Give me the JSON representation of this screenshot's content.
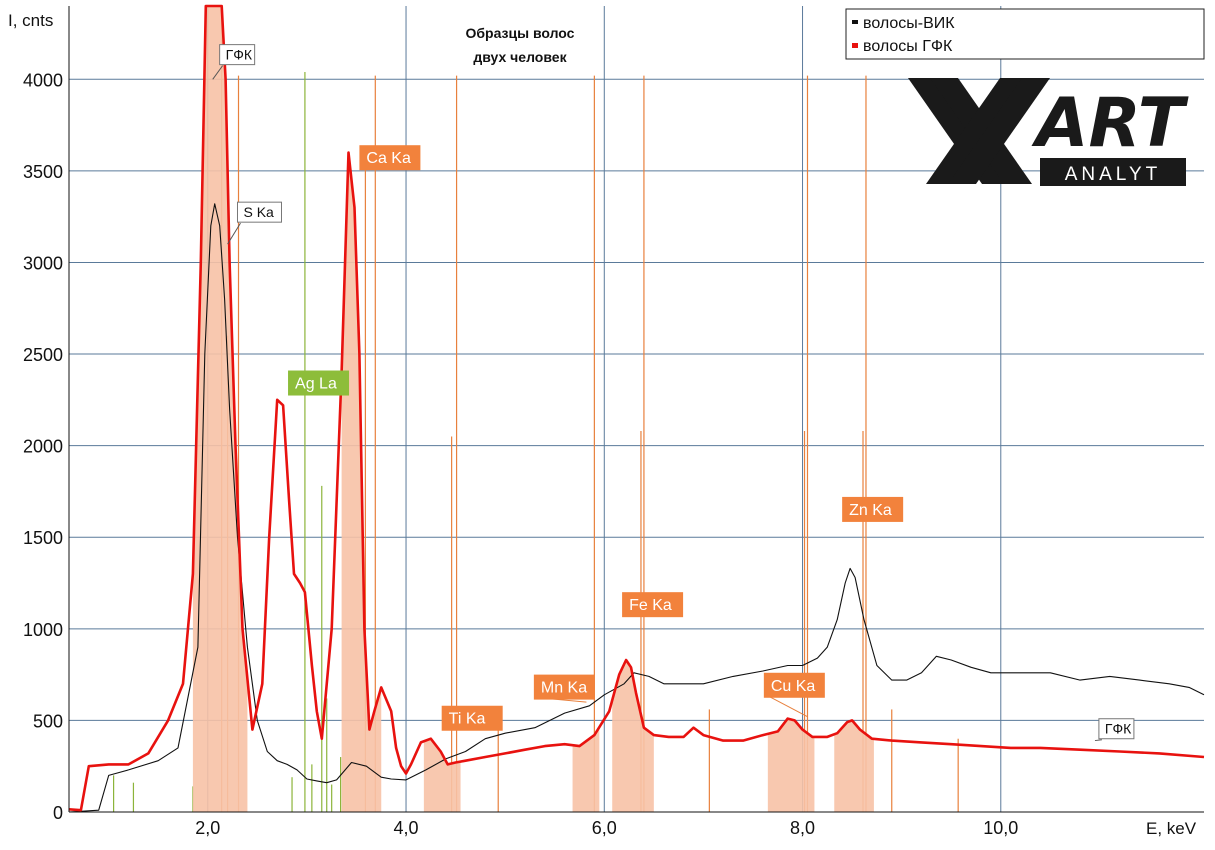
{
  "chart_data": {
    "type": "line",
    "title_lines": [
      "Образцы волос",
      "двух человек"
    ],
    "xlabel": "E, keV",
    "ylabel": "I, cnts",
    "xlim": [
      0.6,
      12.05
    ],
    "ylim": [
      0,
      4400
    ],
    "x_ticks": [
      2,
      4,
      6,
      8,
      10
    ],
    "x_tick_labels": [
      "2,0",
      "4,0",
      "6,0",
      "8,0",
      "10,0"
    ],
    "y_ticks": [
      0,
      500,
      1000,
      1500,
      2000,
      2500,
      3000,
      3500,
      4000
    ],
    "y_tick_labels": [
      "0",
      "500",
      "1000",
      "1500",
      "2000",
      "2500",
      "3000",
      "3500",
      "4000"
    ],
    "grid": true,
    "legend_position": "top-right",
    "colors": {
      "series_black": "#111111",
      "series_red": "#e8120f",
      "fill": "#f7c2a6",
      "marker_orange": "#e8803d",
      "marker_green": "#8cb43a",
      "label_orange": "#f2823c",
      "label_green": "#8dbd3a",
      "grid": "#5a7a9a"
    },
    "series": [
      {
        "name": "волосы-ВИК",
        "color": "#111111",
        "x": [
          0.6,
          0.9,
          1.0,
          1.2,
          1.5,
          1.7,
          1.9,
          1.97,
          2.03,
          2.07,
          2.12,
          2.17,
          2.22,
          2.3,
          2.4,
          2.5,
          2.6,
          2.7,
          2.8,
          2.9,
          3.0,
          3.1,
          3.2,
          3.3,
          3.45,
          3.6,
          3.75,
          3.85,
          4.0,
          4.2,
          4.4,
          4.6,
          4.8,
          5.0,
          5.3,
          5.6,
          5.85,
          6.0,
          6.2,
          6.3,
          6.45,
          6.6,
          6.8,
          7.0,
          7.3,
          7.6,
          7.85,
          8.0,
          8.15,
          8.25,
          8.35,
          8.43,
          8.48,
          8.53,
          8.62,
          8.75,
          8.9,
          9.05,
          9.2,
          9.35,
          9.5,
          9.7,
          9.9,
          10.1,
          10.3,
          10.5,
          10.8,
          11.1,
          11.4,
          11.7,
          11.9,
          12.05
        ],
        "values": [
          0,
          10,
          200,
          230,
          280,
          350,
          900,
          2500,
          3200,
          3320,
          3200,
          2800,
          2200,
          1500,
          900,
          500,
          330,
          280,
          260,
          230,
          180,
          170,
          160,
          175,
          270,
          250,
          190,
          180,
          175,
          230,
          290,
          330,
          400,
          430,
          460,
          540,
          580,
          640,
          700,
          760,
          740,
          700,
          700,
          700,
          740,
          770,
          800,
          800,
          840,
          900,
          1050,
          1250,
          1330,
          1280,
          1050,
          800,
          720,
          720,
          760,
          850,
          830,
          790,
          760,
          760,
          760,
          760,
          720,
          740,
          720,
          700,
          680,
          640
        ]
      },
      {
        "name": "волосы ГФК",
        "color": "#e8120f",
        "x": [
          0.6,
          0.72,
          0.8,
          1.0,
          1.2,
          1.4,
          1.6,
          1.75,
          1.85,
          1.93,
          1.98,
          2.02,
          2.06,
          2.1,
          2.14,
          2.18,
          2.22,
          2.28,
          2.35,
          2.45,
          2.55,
          2.62,
          2.7,
          2.76,
          2.82,
          2.87,
          2.93,
          2.98,
          3.05,
          3.1,
          3.15,
          3.25,
          3.35,
          3.42,
          3.48,
          3.53,
          3.58,
          3.63,
          3.68,
          3.75,
          3.85,
          3.9,
          3.95,
          4.0,
          4.05,
          4.15,
          4.25,
          4.35,
          4.42,
          4.5,
          4.6,
          4.8,
          5.0,
          5.2,
          5.4,
          5.6,
          5.75,
          5.9,
          6.05,
          6.15,
          6.22,
          6.27,
          6.32,
          6.4,
          6.5,
          6.65,
          6.8,
          6.9,
          7.0,
          7.2,
          7.4,
          7.6,
          7.75,
          7.85,
          7.92,
          8.0,
          8.1,
          8.25,
          8.35,
          8.45,
          8.5,
          8.58,
          8.7,
          8.9,
          9.2,
          9.5,
          9.8,
          10.1,
          10.4,
          10.8,
          11.2,
          11.6,
          12.05
        ],
        "values": [
          15,
          10,
          250,
          260,
          260,
          320,
          500,
          700,
          1300,
          3000,
          4400,
          4400,
          4400,
          4400,
          4400,
          4000,
          3000,
          2000,
          1000,
          450,
          700,
          1500,
          2250,
          2220,
          1700,
          1300,
          1250,
          1200,
          800,
          550,
          400,
          1000,
          2400,
          3600,
          3300,
          2500,
          1000,
          450,
          550,
          680,
          550,
          350,
          250,
          210,
          260,
          380,
          400,
          330,
          260,
          270,
          280,
          300,
          320,
          340,
          360,
          370,
          360,
          420,
          550,
          750,
          830,
          790,
          650,
          460,
          420,
          410,
          410,
          460,
          420,
          390,
          390,
          420,
          440,
          510,
          500,
          450,
          410,
          410,
          430,
          490,
          500,
          450,
          400,
          390,
          380,
          370,
          360,
          350,
          350,
          340,
          330,
          320,
          300
        ]
      }
    ],
    "filled_regions": [
      {
        "x0": 1.85,
        "x1": 2.4,
        "series": "волосы ГФК"
      },
      {
        "x0": 3.35,
        "x1": 3.75,
        "series": "волосы ГФК"
      },
      {
        "x0": 4.18,
        "x1": 4.55,
        "series": "волосы ГФК"
      },
      {
        "x0": 5.68,
        "x1": 5.95,
        "series": "волосы ГФК"
      },
      {
        "x0": 6.08,
        "x1": 6.5,
        "series": "волосы ГФК"
      },
      {
        "x0": 7.65,
        "x1": 8.12,
        "series": "волосы ГФК"
      },
      {
        "x0": 8.32,
        "x1": 8.72,
        "series": "волосы ГФК"
      }
    ],
    "marker_lines": [
      {
        "x": 2.31,
        "height": 4020,
        "color": "orange"
      },
      {
        "x": 3.69,
        "height": 4020,
        "color": "orange"
      },
      {
        "x": 4.51,
        "height": 4020,
        "color": "orange"
      },
      {
        "x": 5.9,
        "height": 4020,
        "color": "orange"
      },
      {
        "x": 6.4,
        "height": 4020,
        "color": "orange"
      },
      {
        "x": 8.05,
        "height": 4020,
        "color": "orange"
      },
      {
        "x": 8.64,
        "height": 4020,
        "color": "orange"
      },
      {
        "x": 2.14,
        "height": 4400,
        "color": "orange"
      },
      {
        "x": 2.2,
        "height": 2600,
        "color": "orange"
      },
      {
        "x": 3.59,
        "height": 3550,
        "color": "orange"
      },
      {
        "x": 4.46,
        "height": 2050,
        "color": "orange"
      },
      {
        "x": 4.93,
        "height": 450,
        "color": "orange"
      },
      {
        "x": 6.37,
        "height": 2080,
        "color": "orange"
      },
      {
        "x": 7.06,
        "height": 560,
        "color": "orange"
      },
      {
        "x": 8.02,
        "height": 2080,
        "color": "orange"
      },
      {
        "x": 8.61,
        "height": 2080,
        "color": "orange"
      },
      {
        "x": 8.9,
        "height": 560,
        "color": "orange"
      },
      {
        "x": 9.57,
        "height": 400,
        "color": "orange"
      },
      {
        "x": 2.98,
        "height": 4040,
        "color": "green"
      },
      {
        "x": 3.15,
        "height": 1780,
        "color": "green"
      },
      {
        "x": 3.2,
        "height": 620,
        "color": "green"
      },
      {
        "x": 3.34,
        "height": 300,
        "color": "green"
      },
      {
        "x": 3.05,
        "height": 260,
        "color": "green"
      },
      {
        "x": 2.85,
        "height": 190,
        "color": "green"
      },
      {
        "x": 3.25,
        "height": 150,
        "color": "green"
      },
      {
        "x": 1.05,
        "height": 200,
        "color": "green"
      },
      {
        "x": 1.25,
        "height": 160,
        "color": "green"
      },
      {
        "x": 1.85,
        "height": 140,
        "color": "green"
      }
    ],
    "annotations": [
      {
        "text": "ГФК",
        "x": 2.15,
        "y": 4140,
        "style": "outline",
        "leader_to": [
          2.05,
          4000
        ]
      },
      {
        "text": "S Ka",
        "x": 2.33,
        "y": 3280,
        "style": "outline",
        "leader_to": [
          2.2,
          3100
        ]
      },
      {
        "text": "Ag La",
        "x": 2.85,
        "y": 2350,
        "style": "green"
      },
      {
        "text": "Ca Ka",
        "x": 3.57,
        "y": 3580,
        "style": "orange"
      },
      {
        "text": "Ti Ka",
        "x": 4.4,
        "y": 520,
        "style": "orange"
      },
      {
        "text": "Mn Ka",
        "x": 5.33,
        "y": 690,
        "style": "orange",
        "leader_to": [
          5.82,
          600
        ]
      },
      {
        "text": "Fe Ka",
        "x": 6.22,
        "y": 1140,
        "style": "orange"
      },
      {
        "text": "Cu Ka",
        "x": 7.65,
        "y": 700,
        "style": "orange",
        "leader_to": [
          8.05,
          520
        ]
      },
      {
        "text": "Zn Ka",
        "x": 8.44,
        "y": 1660,
        "style": "orange"
      },
      {
        "text": "ГФК",
        "x": 11.02,
        "y": 460,
        "style": "outline",
        "leader_to": [
          10.95,
          390
        ]
      }
    ]
  },
  "legend": {
    "items": [
      {
        "label": "волосы-ВИК",
        "color": "#111111"
      },
      {
        "label": "волосы ГФК",
        "color": "#e8120f"
      }
    ]
  },
  "logo": {
    "brand": "ART",
    "sub": "ANALYT"
  }
}
